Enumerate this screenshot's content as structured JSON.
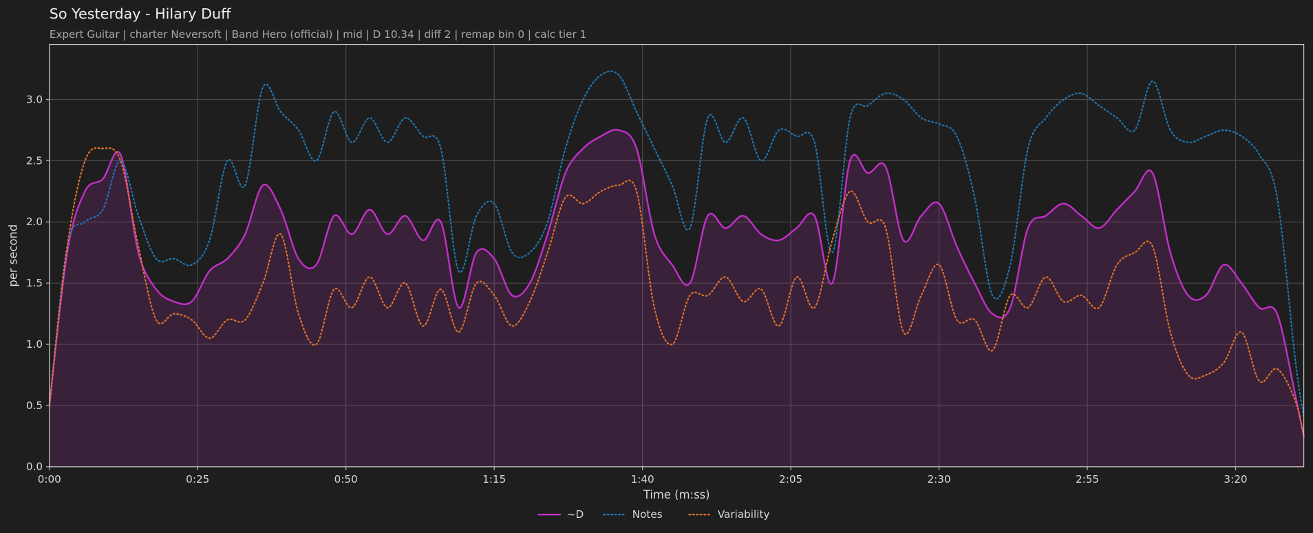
{
  "chart_data": {
    "type": "line",
    "title": "So Yesterday - Hilary Duff",
    "subtitle": "Expert Guitar  |  charter Neversoft  |  Band Hero (official)  |  mid  |  D 10.34  |  diff 2  |  remap bin 0  |  calc tier 1",
    "x_label": "Time (m:ss)",
    "y_label": "per second",
    "xlim": [
      0,
      211.5
    ],
    "ylim": [
      0,
      3.45
    ],
    "xticks": [
      {
        "value": 0,
        "label": "0:00"
      },
      {
        "value": 25,
        "label": "0:25"
      },
      {
        "value": 50,
        "label": "0:50"
      },
      {
        "value": 75,
        "label": "1:15"
      },
      {
        "value": 100,
        "label": "1:40"
      },
      {
        "value": 125,
        "label": "2:05"
      },
      {
        "value": 150,
        "label": "2:30"
      },
      {
        "value": 175,
        "label": "2:55"
      },
      {
        "value": 200,
        "label": "3:20"
      }
    ],
    "yticks": [
      {
        "value": 0,
        "label": "0.0"
      },
      {
        "value": 0.5,
        "label": "0.5"
      },
      {
        "value": 1,
        "label": "1.0"
      },
      {
        "value": 1.5,
        "label": "1.5"
      },
      {
        "value": 2,
        "label": "2.0"
      },
      {
        "value": 2.5,
        "label": "2.5"
      },
      {
        "value": 3,
        "label": "3.0"
      }
    ],
    "grid": true,
    "legend": "bottom",
    "x": [
      0,
      3,
      6,
      9,
      12,
      15,
      18,
      21,
      24,
      27,
      30,
      33,
      36,
      39,
      42,
      45,
      48,
      51,
      54,
      57,
      60,
      63,
      66,
      69,
      72,
      75,
      78,
      81,
      84,
      87,
      90,
      93,
      96,
      99,
      102,
      105,
      108,
      111,
      114,
      117,
      120,
      123,
      126,
      129,
      132,
      135,
      138,
      141,
      144,
      147,
      150,
      153,
      156,
      159,
      162,
      165,
      168,
      171,
      174,
      177,
      180,
      183,
      186,
      189,
      192,
      195,
      198,
      201,
      204,
      207,
      210,
      211.5
    ],
    "series": [
      {
        "name": "~D",
        "color": "#c22fc8",
        "fill": true,
        "style": "solid",
        "values": [
          0.5,
          1.75,
          2.25,
          2.35,
          2.55,
          1.75,
          1.45,
          1.35,
          1.35,
          1.6,
          1.7,
          1.9,
          2.3,
          2.1,
          1.7,
          1.65,
          2.05,
          1.9,
          2.1,
          1.9,
          2.05,
          1.85,
          2.0,
          1.3,
          1.75,
          1.7,
          1.4,
          1.5,
          1.9,
          2.4,
          2.6,
          2.7,
          2.75,
          2.6,
          1.9,
          1.65,
          1.5,
          2.05,
          1.95,
          2.05,
          1.9,
          1.85,
          1.95,
          2.05,
          1.5,
          2.5,
          2.4,
          2.45,
          1.85,
          2.05,
          2.15,
          1.8,
          1.5,
          1.25,
          1.3,
          1.95,
          2.05,
          2.15,
          2.05,
          1.95,
          2.1,
          2.25,
          2.4,
          1.75,
          1.4,
          1.4,
          1.65,
          1.5,
          1.3,
          1.25,
          0.6,
          0.25
        ]
      },
      {
        "name": "Notes",
        "color": "#1f77b4",
        "style": "dotted",
        "values": [
          0.5,
          1.8,
          2.0,
          2.1,
          2.5,
          2.05,
          1.7,
          1.7,
          1.65,
          1.85,
          2.5,
          2.3,
          3.1,
          2.9,
          2.75,
          2.5,
          2.9,
          2.65,
          2.85,
          2.65,
          2.85,
          2.7,
          2.6,
          1.6,
          2.05,
          2.15,
          1.75,
          1.75,
          2.0,
          2.6,
          3.0,
          3.2,
          3.2,
          2.9,
          2.6,
          2.3,
          1.95,
          2.85,
          2.65,
          2.85,
          2.5,
          2.75,
          2.7,
          2.65,
          1.75,
          2.85,
          2.95,
          3.05,
          3.0,
          2.85,
          2.8,
          2.7,
          2.2,
          1.4,
          1.65,
          2.6,
          2.85,
          3.0,
          3.05,
          2.95,
          2.85,
          2.75,
          3.15,
          2.75,
          2.65,
          2.7,
          2.75,
          2.7,
          2.55,
          2.2,
          0.9,
          0.4
        ]
      },
      {
        "name": "Variability",
        "color": "#e0722a",
        "style": "dotted",
        "values": [
          0.5,
          1.8,
          2.5,
          2.6,
          2.5,
          1.8,
          1.2,
          1.25,
          1.2,
          1.05,
          1.2,
          1.2,
          1.5,
          1.9,
          1.25,
          1.0,
          1.45,
          1.3,
          1.55,
          1.3,
          1.5,
          1.15,
          1.45,
          1.1,
          1.5,
          1.4,
          1.15,
          1.35,
          1.75,
          2.2,
          2.15,
          2.25,
          2.3,
          2.25,
          1.3,
          1.0,
          1.4,
          1.4,
          1.55,
          1.35,
          1.45,
          1.15,
          1.55,
          1.3,
          1.85,
          2.25,
          2.0,
          1.95,
          1.1,
          1.4,
          1.65,
          1.2,
          1.2,
          0.95,
          1.4,
          1.3,
          1.55,
          1.35,
          1.4,
          1.3,
          1.65,
          1.75,
          1.8,
          1.1,
          0.75,
          0.75,
          0.85,
          1.1,
          0.7,
          0.8,
          0.55,
          0.25
        ]
      }
    ]
  }
}
